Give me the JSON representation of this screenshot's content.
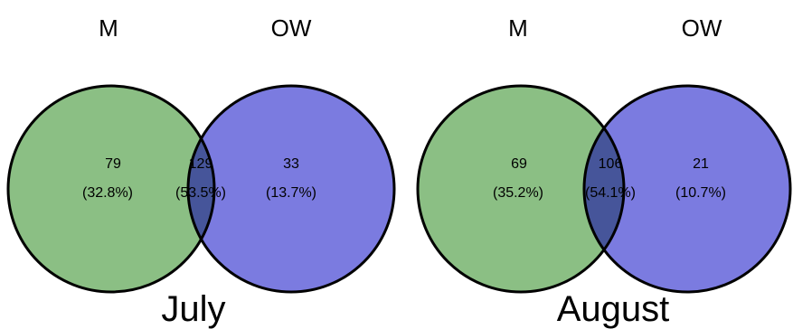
{
  "colors": {
    "set_a_fill": "#8bbf84",
    "set_b_fill": "#7b7be0",
    "overlap_fill": "#46559a",
    "outline": "#000000",
    "background": "#ffffff"
  },
  "panels": [
    {
      "title": "July",
      "sets": [
        "M",
        "OW"
      ],
      "regions": {
        "only_a": {
          "count": "79",
          "percent": "(32.8%)"
        },
        "both": {
          "count": "129",
          "percent": "(53.5%)"
        },
        "only_b": {
          "count": "33",
          "percent": "(13.7%)"
        }
      }
    },
    {
      "title": "August",
      "sets": [
        "M",
        "OW"
      ],
      "regions": {
        "only_a": {
          "count": "69",
          "percent": "(35.2%)"
        },
        "both": {
          "count": "106",
          "percent": "(54.1%)"
        },
        "only_b": {
          "count": "21",
          "percent": "(10.7%)"
        }
      }
    }
  ]
}
